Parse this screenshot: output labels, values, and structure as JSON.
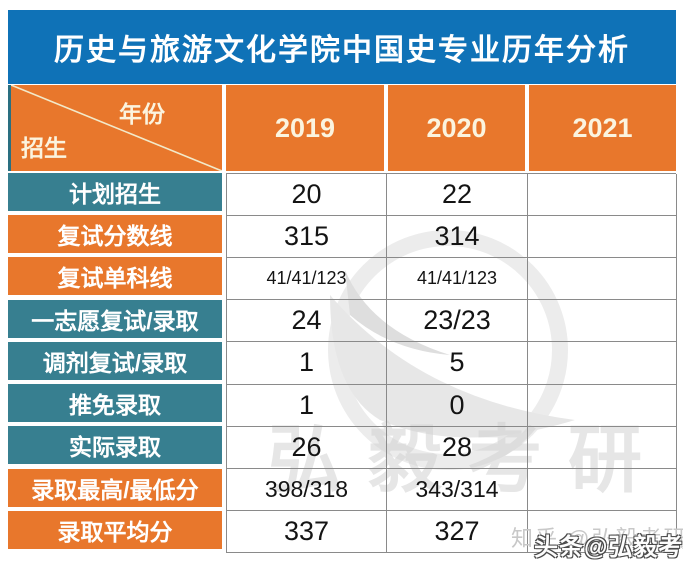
{
  "chart_data": {
    "type": "table",
    "title": "历史与旅游文化学院中国史专业历年分析",
    "header": {
      "corner_top": "年份",
      "corner_bottom": "招生",
      "years": [
        "2019",
        "2020",
        "2021"
      ]
    },
    "rows": [
      {
        "label": "计划招生",
        "style": "teal",
        "size": "normal",
        "values": [
          "20",
          "22",
          ""
        ]
      },
      {
        "label": "复试分数线",
        "style": "orange",
        "size": "normal",
        "values": [
          "315",
          "314",
          ""
        ]
      },
      {
        "label": "复试单科线",
        "style": "orange",
        "size": "small",
        "values": [
          "41/41/123",
          "41/41/123",
          ""
        ]
      },
      {
        "label": "一志愿复试/录取",
        "style": "teal",
        "size": "normal",
        "values": [
          "24",
          "23/23",
          ""
        ]
      },
      {
        "label": "调剂复试/录取",
        "style": "teal",
        "size": "normal",
        "values": [
          "1",
          "5",
          ""
        ]
      },
      {
        "label": "推免录取",
        "style": "teal",
        "size": "normal",
        "values": [
          "1",
          "0",
          ""
        ]
      },
      {
        "label": "实际录取",
        "style": "teal",
        "size": "normal",
        "values": [
          "26",
          "28",
          ""
        ]
      },
      {
        "label": "录取最高/最低分",
        "style": "orange",
        "size": "medium",
        "values": [
          "398/318",
          "343/314",
          ""
        ]
      },
      {
        "label": "录取平均分",
        "style": "orange",
        "size": "normal",
        "values": [
          "337",
          "327",
          ""
        ]
      }
    ]
  },
  "colors": {
    "title_blue": "#0f72b7",
    "orange": "#e8772c",
    "teal": "#377f90",
    "grid_line": "#8a8a8a",
    "diagonal_line": "#f2e9c9"
  },
  "watermarks": {
    "center_text": "弘毅考研",
    "bottom_gray": "知乎 @弘毅考研",
    "bottom_white": "头条@弘毅考研"
  }
}
